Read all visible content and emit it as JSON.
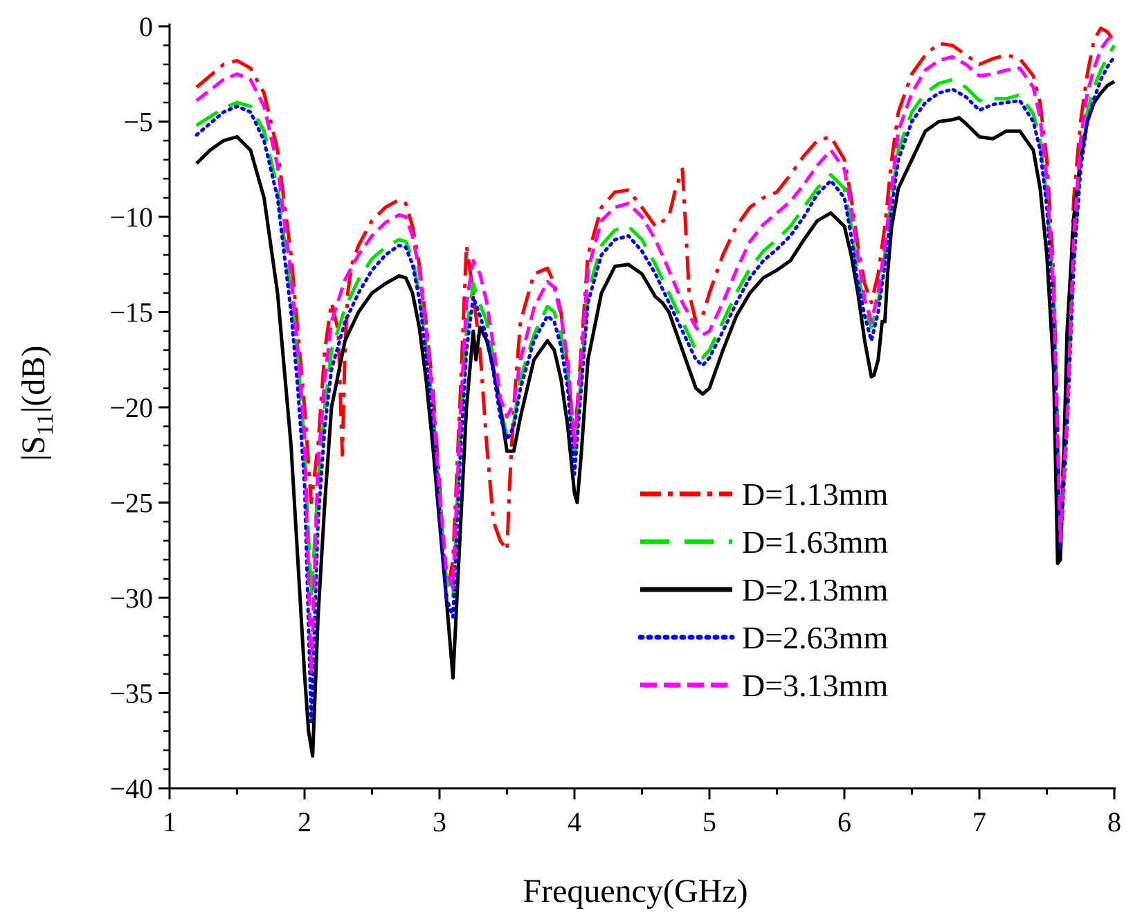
{
  "chart_data": {
    "type": "line",
    "title": "",
    "xlabel": "Frequency(GHz)",
    "ylabel": {
      "prefix": "|S",
      "subscript": "11",
      "suffix": "|(dB)"
    },
    "xlim": [
      1,
      8
    ],
    "ylim": [
      -40,
      0
    ],
    "xticks": [
      1,
      2,
      3,
      4,
      5,
      6,
      7,
      8
    ],
    "yticks": [
      0,
      -5,
      -10,
      -15,
      -20,
      -25,
      -30,
      -35,
      -40
    ],
    "xtick_labels": [
      "1",
      "2",
      "3",
      "4",
      "5",
      "6",
      "7",
      "8"
    ],
    "ytick_labels": [
      "0",
      "−5",
      "−10",
      "−15",
      "−20",
      "−25",
      "−30",
      "−35",
      "−40"
    ],
    "grid": false,
    "legend_position": "bottom-right",
    "series": [
      {
        "name": "D=1.13mm",
        "color": "#ff0000",
        "dash": "dashdot",
        "x": [
          1.2,
          1.4,
          1.5,
          1.6,
          1.7,
          1.8,
          1.9,
          1.95,
          2.0,
          2.05,
          2.1,
          2.15,
          2.2,
          2.25,
          2.28,
          2.3,
          2.32,
          2.35,
          2.4,
          2.5,
          2.6,
          2.7,
          2.75,
          2.8,
          2.85,
          2.9,
          2.95,
          3.0,
          3.05,
          3.1,
          3.15,
          3.2,
          3.22,
          3.25,
          3.3,
          3.35,
          3.4,
          3.45,
          3.5,
          3.52,
          3.55,
          3.6,
          3.7,
          3.8,
          3.85,
          3.9,
          3.95,
          4.0,
          4.05,
          4.1,
          4.2,
          4.3,
          4.4,
          4.5,
          4.6,
          4.7,
          4.75,
          4.8,
          4.82,
          4.85,
          4.9,
          4.95,
          5.0,
          5.1,
          5.2,
          5.3,
          5.4,
          5.5,
          5.6,
          5.7,
          5.8,
          5.9,
          6.0,
          6.05,
          6.1,
          6.15,
          6.2,
          6.25,
          6.3,
          6.35,
          6.4,
          6.5,
          6.6,
          6.7,
          6.8,
          6.9,
          7.0,
          7.1,
          7.2,
          7.3,
          7.4,
          7.45,
          7.5,
          7.55,
          7.6,
          7.65,
          7.7,
          7.75,
          7.8,
          7.85,
          7.9,
          7.95,
          8.0
        ],
        "y": [
          -3.2,
          -2.0,
          -1.8,
          -2.2,
          -3.5,
          -6.5,
          -12,
          -16,
          -20,
          -25,
          -22,
          -17,
          -14.5,
          -16,
          -22.5,
          -17,
          -14,
          -12.5,
          -11.5,
          -10.2,
          -9.5,
          -9.1,
          -9.3,
          -10.5,
          -12.5,
          -15.5,
          -19,
          -24,
          -30,
          -28,
          -20,
          -11.5,
          -12.5,
          -14,
          -17,
          -22,
          -26,
          -27,
          -27.5,
          -24,
          -20,
          -15.5,
          -13,
          -12.7,
          -13.5,
          -15,
          -18,
          -22,
          -17,
          -12,
          -9.5,
          -8.7,
          -8.6,
          -9.5,
          -10.5,
          -10,
          -8.5,
          -7.5,
          -10,
          -14,
          -15.5,
          -15.2,
          -14,
          -12,
          -10.5,
          -9.5,
          -9,
          -8.7,
          -7.8,
          -6.8,
          -6,
          -5.8,
          -7,
          -9,
          -11.5,
          -13.5,
          -14.5,
          -13,
          -10.5,
          -7,
          -4.5,
          -2.5,
          -1.5,
          -0.9,
          -1.0,
          -1.5,
          -2.0,
          -1.7,
          -1.5,
          -1.7,
          -2.6,
          -4,
          -7,
          -13,
          -26.5,
          -18,
          -9,
          -5,
          -2.5,
          -0.7,
          -0.1,
          -0.3,
          -0.8
        ]
      },
      {
        "name": "D=1.63mm",
        "color": "#00e000",
        "dash": "longdash",
        "x": [
          1.2,
          1.4,
          1.5,
          1.6,
          1.7,
          1.8,
          1.9,
          1.95,
          2.0,
          2.05,
          2.1,
          2.15,
          2.2,
          2.3,
          2.4,
          2.5,
          2.6,
          2.7,
          2.75,
          2.8,
          2.85,
          2.9,
          2.95,
          3.0,
          3.05,
          3.1,
          3.15,
          3.2,
          3.25,
          3.3,
          3.35,
          3.4,
          3.45,
          3.5,
          3.55,
          3.6,
          3.7,
          3.8,
          3.85,
          3.9,
          3.95,
          4.0,
          4.05,
          4.1,
          4.2,
          4.3,
          4.4,
          4.5,
          4.6,
          4.7,
          4.8,
          4.9,
          4.95,
          5.0,
          5.1,
          5.2,
          5.3,
          5.4,
          5.5,
          5.6,
          5.7,
          5.8,
          5.9,
          6.0,
          6.05,
          6.1,
          6.15,
          6.2,
          6.25,
          6.3,
          6.35,
          6.4,
          6.5,
          6.6,
          6.7,
          6.8,
          6.9,
          7.0,
          7.1,
          7.2,
          7.3,
          7.4,
          7.45,
          7.5,
          7.55,
          7.6,
          7.65,
          7.7,
          7.75,
          7.8,
          7.85,
          7.9,
          7.95,
          8.0
        ],
        "y": [
          -5.2,
          -4.3,
          -4.0,
          -4.2,
          -5.5,
          -8.5,
          -14,
          -17.5,
          -22,
          -30,
          -24,
          -20,
          -17,
          -14.8,
          -13.3,
          -12.2,
          -11.6,
          -11.2,
          -11.3,
          -12.2,
          -14,
          -16.8,
          -20,
          -25,
          -29,
          -30,
          -22,
          -16,
          -13.5,
          -14.6,
          -15.5,
          -17.5,
          -20,
          -21.5,
          -20.8,
          -18.5,
          -16.2,
          -14.7,
          -15,
          -16.2,
          -18.5,
          -22.5,
          -18.5,
          -14,
          -11.5,
          -10.7,
          -10.5,
          -11.2,
          -12.5,
          -14,
          -15.5,
          -17,
          -17.4,
          -17,
          -15.5,
          -14,
          -12.7,
          -11.8,
          -11.2,
          -10.5,
          -9.5,
          -8.5,
          -7.8,
          -8.5,
          -10.5,
          -13,
          -14.7,
          -15.8,
          -14.5,
          -12,
          -9,
          -6.5,
          -4.5,
          -3.5,
          -3,
          -2.8,
          -3.2,
          -3.9,
          -3.8,
          -3.8,
          -3.6,
          -4.6,
          -6,
          -9,
          -14,
          -27,
          -20,
          -12,
          -7,
          -4.5,
          -3.2,
          -2.3,
          -1.6,
          -1.0
        ]
      },
      {
        "name": "D=2.13mm",
        "color": "#000000",
        "dash": "solid",
        "x": [
          1.2,
          1.3,
          1.4,
          1.5,
          1.6,
          1.7,
          1.8,
          1.9,
          1.95,
          2.0,
          2.03,
          2.06,
          2.1,
          2.15,
          2.2,
          2.3,
          2.4,
          2.5,
          2.6,
          2.7,
          2.75,
          2.8,
          2.85,
          2.9,
          2.95,
          3.0,
          3.05,
          3.1,
          3.15,
          3.2,
          3.25,
          3.27,
          3.3,
          3.35,
          3.4,
          3.45,
          3.5,
          3.55,
          3.6,
          3.7,
          3.8,
          3.85,
          3.9,
          3.95,
          4.0,
          4.02,
          4.05,
          4.1,
          4.2,
          4.3,
          4.4,
          4.5,
          4.6,
          4.65,
          4.7,
          4.8,
          4.9,
          4.95,
          5.0,
          5.1,
          5.2,
          5.3,
          5.4,
          5.5,
          5.6,
          5.7,
          5.8,
          5.9,
          6.0,
          6.05,
          6.1,
          6.15,
          6.2,
          6.22,
          6.25,
          6.28,
          6.3,
          6.32,
          6.35,
          6.4,
          6.5,
          6.6,
          6.7,
          6.8,
          6.85,
          6.9,
          7.0,
          7.1,
          7.2,
          7.3,
          7.4,
          7.45,
          7.5,
          7.55,
          7.58,
          7.6,
          7.62,
          7.65,
          7.7,
          7.75,
          7.8,
          7.85,
          7.9,
          7.95,
          8.0
        ],
        "y": [
          -7.2,
          -6.5,
          -6.0,
          -5.8,
          -6.5,
          -9,
          -14,
          -22,
          -28,
          -34,
          -37,
          -38.3,
          -31,
          -25,
          -20,
          -16.5,
          -15,
          -14,
          -13.5,
          -13.1,
          -13.2,
          -14,
          -15.8,
          -18.5,
          -22,
          -26,
          -30,
          -34.2,
          -27,
          -20,
          -16,
          -17.5,
          -15.8,
          -16.5,
          -18,
          -20,
          -22.3,
          -22.3,
          -20.5,
          -17.5,
          -16.5,
          -17,
          -18.5,
          -21,
          -24.5,
          -25,
          -22.5,
          -17.5,
          -14,
          -12.6,
          -12.5,
          -13,
          -14.2,
          -14.5,
          -15,
          -17,
          -19,
          -19.3,
          -19,
          -17,
          -15.2,
          -14,
          -13.2,
          -12.8,
          -12.3,
          -11.2,
          -10.2,
          -9.8,
          -10.5,
          -12,
          -14,
          -16.5,
          -18.4,
          -18.3,
          -17.5,
          -15.5,
          -15.5,
          -13,
          -10.5,
          -8.5,
          -7,
          -5.5,
          -5,
          -4.9,
          -4.8,
          -5.1,
          -5.8,
          -5.9,
          -5.5,
          -5.5,
          -6.5,
          -8.5,
          -12,
          -18,
          -28.2,
          -28,
          -24,
          -16,
          -10,
          -7,
          -5,
          -4,
          -3.5,
          -3.1,
          -2.9
        ]
      },
      {
        "name": "D=2.63mm",
        "color": "#0000ff",
        "dash": "dotted",
        "x": [
          1.2,
          1.4,
          1.5,
          1.6,
          1.7,
          1.8,
          1.9,
          1.95,
          2.0,
          2.05,
          2.1,
          2.15,
          2.2,
          2.3,
          2.4,
          2.5,
          2.6,
          2.7,
          2.75,
          2.8,
          2.85,
          2.9,
          2.95,
          3.0,
          3.05,
          3.1,
          3.15,
          3.2,
          3.25,
          3.3,
          3.35,
          3.4,
          3.45,
          3.5,
          3.55,
          3.6,
          3.7,
          3.8,
          3.85,
          3.9,
          3.95,
          4.0,
          4.05,
          4.1,
          4.2,
          4.3,
          4.4,
          4.5,
          4.6,
          4.7,
          4.8,
          4.9,
          4.95,
          5.0,
          5.1,
          5.2,
          5.3,
          5.4,
          5.5,
          5.6,
          5.7,
          5.8,
          5.9,
          6.0,
          6.05,
          6.1,
          6.15,
          6.2,
          6.25,
          6.3,
          6.35,
          6.4,
          6.5,
          6.6,
          6.7,
          6.8,
          6.9,
          7.0,
          7.1,
          7.2,
          7.3,
          7.4,
          7.45,
          7.5,
          7.55,
          7.6,
          7.65,
          7.7,
          7.75,
          7.8,
          7.85,
          7.9,
          7.95,
          8.0
        ],
        "y": [
          -5.7,
          -4.5,
          -4.2,
          -4.5,
          -6,
          -9,
          -15,
          -19,
          -24,
          -36.5,
          -26,
          -21,
          -18,
          -15.5,
          -14,
          -12.8,
          -12,
          -11.5,
          -11.6,
          -12.5,
          -14.3,
          -17.2,
          -20.5,
          -25.5,
          -30,
          -31,
          -23,
          -17,
          -14.2,
          -15.2,
          -16.3,
          -18.2,
          -20.5,
          -21.7,
          -21,
          -19,
          -16.5,
          -15.2,
          -15.5,
          -16.8,
          -19,
          -23.5,
          -19,
          -14.5,
          -12,
          -11.2,
          -11,
          -11.8,
          -13,
          -14.5,
          -16,
          -17.5,
          -17.8,
          -17.4,
          -16,
          -14.5,
          -13.2,
          -12.3,
          -11.7,
          -11,
          -10,
          -8.8,
          -8.1,
          -9,
          -11,
          -13.5,
          -15.2,
          -16.5,
          -15,
          -12.5,
          -9.5,
          -7,
          -5,
          -4,
          -3.5,
          -3.3,
          -3.7,
          -4.4,
          -4.1,
          -4,
          -3.9,
          -5,
          -6.5,
          -9.5,
          -15,
          -27.5,
          -21,
          -12.5,
          -7.5,
          -5,
          -3.8,
          -2.8,
          -2.1,
          -1.6
        ]
      },
      {
        "name": "D=3.13mm",
        "color": "#ff00ff",
        "dash": "dashed",
        "x": [
          1.2,
          1.4,
          1.5,
          1.6,
          1.7,
          1.8,
          1.9,
          1.95,
          2.0,
          2.05,
          2.1,
          2.15,
          2.2,
          2.3,
          2.4,
          2.5,
          2.6,
          2.7,
          2.75,
          2.8,
          2.85,
          2.9,
          2.95,
          3.0,
          3.05,
          3.1,
          3.15,
          3.2,
          3.25,
          3.3,
          3.35,
          3.4,
          3.45,
          3.5,
          3.55,
          3.6,
          3.7,
          3.8,
          3.85,
          3.9,
          3.95,
          4.0,
          4.05,
          4.1,
          4.2,
          4.3,
          4.4,
          4.5,
          4.6,
          4.7,
          4.8,
          4.9,
          4.95,
          5.0,
          5.1,
          5.2,
          5.3,
          5.4,
          5.5,
          5.6,
          5.7,
          5.8,
          5.9,
          6.0,
          6.05,
          6.1,
          6.15,
          6.2,
          6.25,
          6.3,
          6.35,
          6.4,
          6.5,
          6.6,
          6.7,
          6.8,
          6.9,
          7.0,
          7.1,
          7.2,
          7.3,
          7.4,
          7.45,
          7.5,
          7.55,
          7.6,
          7.65,
          7.7,
          7.75,
          7.8,
          7.85,
          7.9,
          7.95,
          8.0
        ],
        "y": [
          -3.9,
          -2.8,
          -2.5,
          -2.8,
          -4.2,
          -7.3,
          -13,
          -17,
          -21.5,
          -34,
          -23,
          -18.5,
          -15.5,
          -13.3,
          -12,
          -11,
          -10.3,
          -9.9,
          -10,
          -11,
          -12.8,
          -15.8,
          -19.5,
          -24.5,
          -28.5,
          -29.5,
          -21,
          -14.5,
          -12.3,
          -13,
          -14.5,
          -16.8,
          -19.5,
          -20.5,
          -19.8,
          -17.5,
          -14.8,
          -13.4,
          -13.7,
          -15.2,
          -17.5,
          -22,
          -17.5,
          -12.8,
          -10.2,
          -9.5,
          -9.3,
          -10,
          -11.2,
          -12.8,
          -14.5,
          -15.8,
          -16.2,
          -16,
          -14.5,
          -12.8,
          -11.3,
          -10.4,
          -9.8,
          -9.2,
          -8.3,
          -7.3,
          -6.5,
          -7.5,
          -9.5,
          -12,
          -14.3,
          -15.5,
          -14,
          -11.5,
          -8.5,
          -5.5,
          -3.5,
          -2.3,
          -1.8,
          -1.6,
          -2.0,
          -2.6,
          -2.5,
          -2.3,
          -2.2,
          -3.2,
          -4.8,
          -8,
          -14,
          -27,
          -20.5,
          -11,
          -6,
          -3.5,
          -2.2,
          -1.2,
          -0.7,
          -0.4
        ]
      }
    ]
  }
}
